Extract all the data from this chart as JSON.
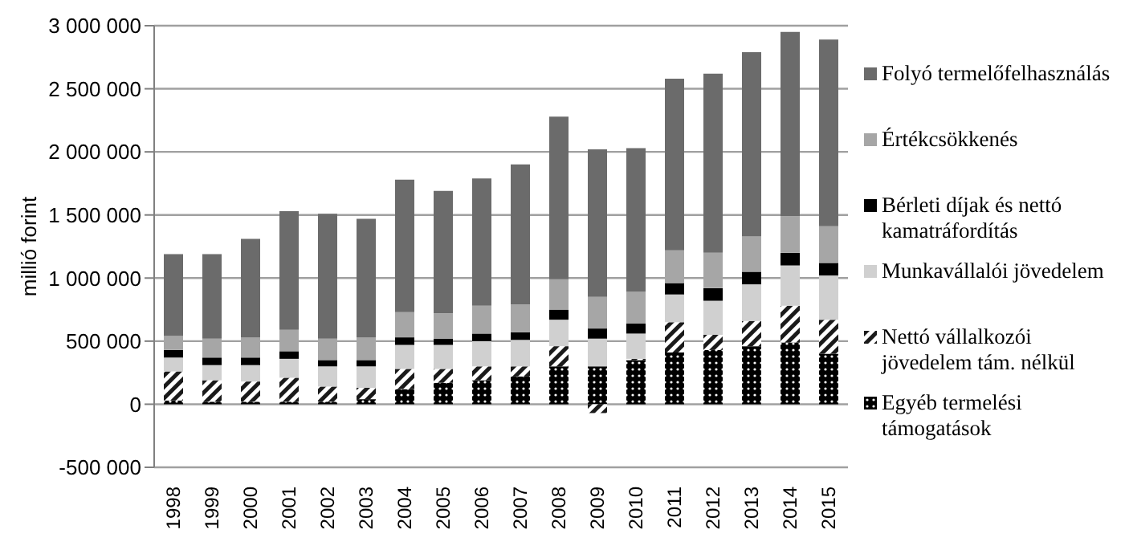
{
  "chart_data": {
    "type": "bar",
    "stacked": true,
    "ylabel": "millió forint",
    "categories": [
      "1998",
      "1999",
      "2000",
      "2001",
      "2002",
      "2003",
      "2004",
      "2005",
      "2006",
      "2007",
      "2008",
      "2009",
      "2010",
      "2011",
      "2012",
      "2013",
      "2014",
      "2015"
    ],
    "series": [
      {
        "name": "Egyéb termelési támogatások",
        "color": "#000000",
        "values": [
          30000,
          20000,
          20000,
          20000,
          20000,
          40000,
          120000,
          170000,
          190000,
          220000,
          300000,
          300000,
          350000,
          410000,
          430000,
          460000,
          490000,
          400000
        ]
      },
      {
        "name": "Nettó vállalkozói jövedelem tám. nélkül",
        "color": "#1a1a1a",
        "values": [
          230000,
          170000,
          160000,
          190000,
          120000,
          90000,
          160000,
          110000,
          110000,
          80000,
          160000,
          -70000,
          10000,
          240000,
          120000,
          200000,
          290000,
          270000
        ]
      },
      {
        "name": "Munkavállalói jövedelem",
        "color": "#d0d0d0",
        "values": [
          110000,
          120000,
          130000,
          150000,
          160000,
          170000,
          190000,
          190000,
          200000,
          210000,
          210000,
          220000,
          200000,
          220000,
          270000,
          290000,
          320000,
          350000
        ]
      },
      {
        "name": "Bérleti díjak és nettó kamatráfordítás",
        "color": "#000000",
        "values": [
          60000,
          60000,
          60000,
          60000,
          50000,
          50000,
          60000,
          50000,
          60000,
          60000,
          80000,
          80000,
          80000,
          90000,
          100000,
          100000,
          100000,
          100000
        ]
      },
      {
        "name": "Értékcsökkenés",
        "color": "#a6a6a6",
        "values": [
          110000,
          150000,
          160000,
          170000,
          170000,
          180000,
          200000,
          200000,
          220000,
          220000,
          240000,
          250000,
          250000,
          260000,
          280000,
          280000,
          290000,
          290000
        ]
      },
      {
        "name": "Folyó termelőfelhasználás",
        "color": "#6b6b6b",
        "values": [
          650000,
          670000,
          780000,
          940000,
          990000,
          940000,
          1050000,
          970000,
          1010000,
          1110000,
          1290000,
          1170000,
          1140000,
          1360000,
          1420000,
          1460000,
          1460000,
          1480000
        ]
      }
    ],
    "ylim": [
      -500000,
      3000000
    ],
    "yticks": [
      {
        "value": -500000,
        "label": "-500 000"
      },
      {
        "value": 0,
        "label": "0"
      },
      {
        "value": 500000,
        "label": "500 000"
      },
      {
        "value": 1000000,
        "label": "1 000 000"
      },
      {
        "value": 1500000,
        "label": "1 500 000"
      },
      {
        "value": 2000000,
        "label": "2 000 000"
      },
      {
        "value": 2500000,
        "label": "2 500 000"
      },
      {
        "value": 3000000,
        "label": "3 000 000"
      }
    ],
    "grid": "y",
    "legend": "right"
  }
}
